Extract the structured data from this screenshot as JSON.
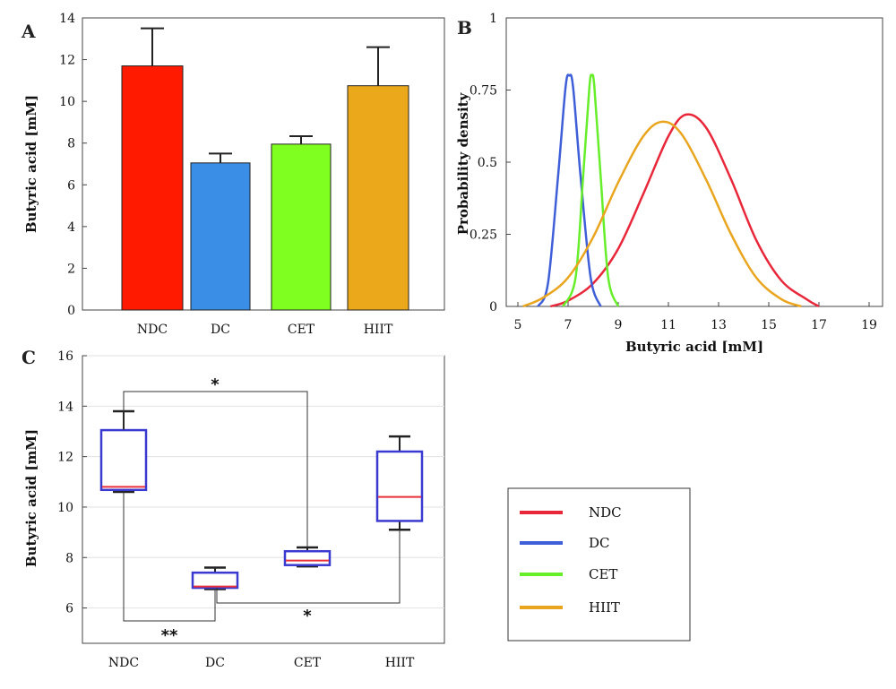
{
  "panels": {
    "a": "A",
    "b": "B",
    "c": "C"
  },
  "colors": {
    "NDC": "#ff1a00",
    "DC": "#3b8ee6",
    "CET": "#7fff1f",
    "HIIT": "#eba81b",
    "box_edge": "#3a3ad0",
    "median": "#e8303a",
    "curve_NDC": "#e8283a",
    "curve_DC": "#3f5fd9",
    "curve_CET": "#66ee2a",
    "curve_HIIT": "#eaa51f"
  },
  "legend": [
    "NDC",
    "DC",
    "CET",
    "HIIT"
  ],
  "chart_data": [
    {
      "id": "A",
      "type": "bar",
      "categories": [
        "NDC",
        "DC",
        "CET",
        "HIIT"
      ],
      "values": [
        11.7,
        7.05,
        7.95,
        10.75
      ],
      "errors": [
        1.8,
        0.45,
        0.38,
        1.85
      ],
      "ylabel": "Butyric acid [mM]",
      "xlabel": "",
      "ylim": [
        0,
        14
      ],
      "yticks": [
        "0",
        "2",
        "4",
        "6",
        "8",
        "10",
        "12",
        "14"
      ]
    },
    {
      "id": "B",
      "type": "line",
      "xlabel": "Butyric acid [mM]",
      "ylabel": "Probability density",
      "xlim": [
        5,
        20
      ],
      "ylim": [
        0,
        1
      ],
      "xticks": [
        "5",
        "7",
        "9",
        "11",
        "13",
        "15",
        "17",
        "19"
      ],
      "yticks": [
        "0",
        "0.25",
        "0.5",
        "0.75",
        "1"
      ],
      "series": [
        {
          "name": "NDC",
          "x": [
            6.3,
            7.0,
            8.0,
            9.0,
            10.0,
            11.0,
            11.7,
            12.5,
            13.5,
            14.5,
            15.5,
            16.5,
            17.0
          ],
          "y": [
            0.0,
            0.02,
            0.08,
            0.2,
            0.39,
            0.59,
            0.665,
            0.62,
            0.44,
            0.23,
            0.09,
            0.025,
            0.0
          ]
        },
        {
          "name": "DC",
          "x": [
            5.8,
            6.2,
            6.6,
            6.9,
            7.05,
            7.2,
            7.5,
            7.9,
            8.3
          ],
          "y": [
            0.0,
            0.08,
            0.45,
            0.76,
            0.8,
            0.76,
            0.45,
            0.1,
            0.0
          ]
        },
        {
          "name": "CET",
          "x": [
            6.8,
            7.3,
            7.6,
            7.85,
            7.95,
            8.05,
            8.3,
            8.6,
            9.0
          ],
          "y": [
            0.0,
            0.1,
            0.45,
            0.76,
            0.8,
            0.76,
            0.45,
            0.1,
            0.0
          ]
        },
        {
          "name": "HIIT",
          "x": [
            5.2,
            6.0,
            7.0,
            8.0,
            9.0,
            10.0,
            10.75,
            11.5,
            12.5,
            13.5,
            14.5,
            15.5,
            16.3
          ],
          "y": [
            0.0,
            0.03,
            0.1,
            0.24,
            0.43,
            0.59,
            0.64,
            0.6,
            0.44,
            0.25,
            0.1,
            0.025,
            0.0
          ]
        }
      ]
    },
    {
      "id": "C",
      "type": "box",
      "categories": [
        "NDC",
        "DC",
        "CET",
        "HIIT"
      ],
      "ylabel": "Butyric acid [mM]",
      "xlabel": "",
      "ylim": [
        4.6,
        16
      ],
      "yticks": [
        "6",
        "8",
        "10",
        "12",
        "14",
        "16"
      ],
      "boxes": [
        {
          "name": "NDC",
          "whisker_low": 10.6,
          "q1": 10.68,
          "median": 10.8,
          "q3": 13.05,
          "whisker_high": 13.8
        },
        {
          "name": "DC",
          "whisker_low": 6.75,
          "q1": 6.8,
          "median": 6.85,
          "q3": 7.4,
          "whisker_high": 7.6
        },
        {
          "name": "CET",
          "whisker_low": 7.65,
          "q1": 7.7,
          "median": 7.88,
          "q3": 8.25,
          "whisker_high": 8.4
        },
        {
          "name": "HIIT",
          "whisker_low": 9.1,
          "q1": 9.45,
          "median": 10.4,
          "q3": 12.2,
          "whisker_high": 12.8
        }
      ],
      "significance": [
        {
          "groups": [
            "NDC",
            "CET"
          ],
          "label": "*"
        },
        {
          "groups": [
            "NDC",
            "DC"
          ],
          "label": "**"
        },
        {
          "groups": [
            "DC",
            "HIIT"
          ],
          "label": "*"
        }
      ]
    }
  ]
}
